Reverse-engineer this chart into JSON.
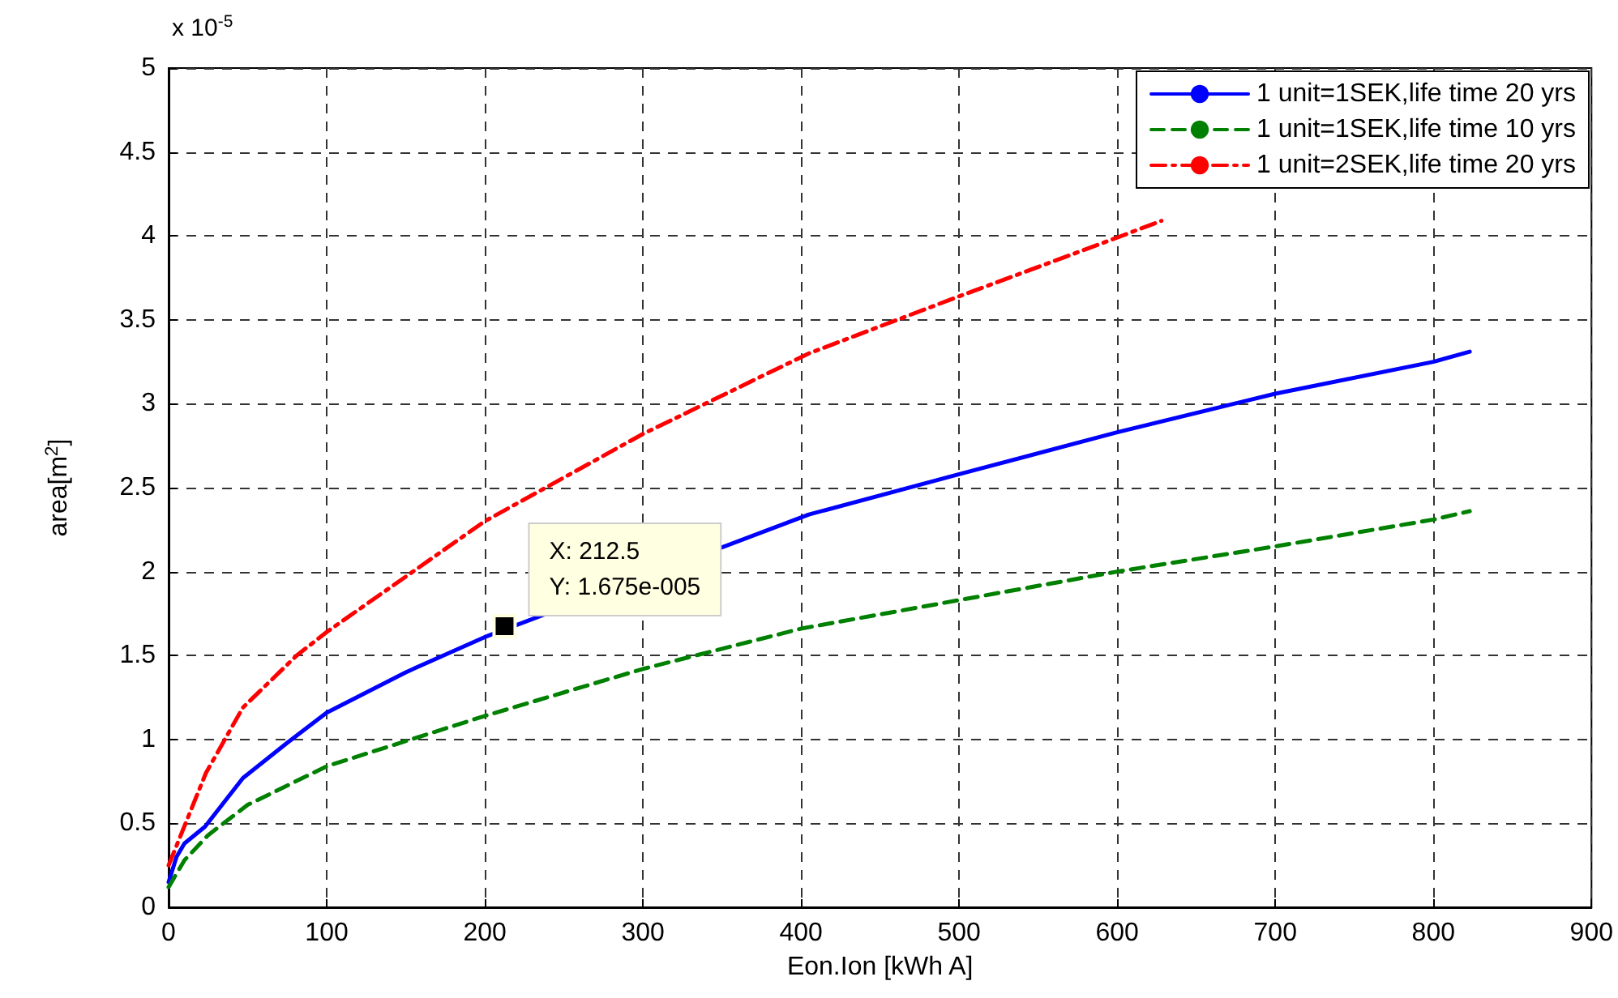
{
  "chart_data": {
    "type": "line",
    "xlabel": "Eon.Ion [kWh A]",
    "ylabel": "area[m$^{2}$]",
    "xlim": [
      0,
      900
    ],
    "xticks": [
      0,
      100,
      200,
      300,
      400,
      500,
      600,
      700,
      800,
      900
    ],
    "ylim": [
      0,
      5
    ],
    "yticks": [
      0,
      0.5,
      1,
      1.5,
      2,
      2.5,
      3,
      3.5,
      4,
      4.5,
      5
    ],
    "grid": true,
    "legend": "top right",
    "marker": "none",
    "annotations": [
      "x 10$^{-5}$",
      {
        "text": "X: 212.5\nY: 1.675e-005",
        "x": 212.5,
        "y": 1.675
      }
    ],
    "series": [
      {
        "name": "1 unit=1SEK,life time 20 yrs",
        "color": "#0000ff",
        "line_style": "solid",
        "x": [
          0,
          5,
          10,
          23,
          47,
          75,
          100,
          150,
          200,
          405,
          500,
          600,
          700,
          800,
          823
        ],
        "values": [
          0.15,
          0.3,
          0.38,
          0.48,
          0.77,
          0.98,
          1.16,
          1.4,
          1.61,
          2.34,
          2.58,
          2.83,
          3.06,
          3.25,
          3.31
        ]
      },
      {
        "name": "1 unit=1SEK,life time 10 yrs",
        "color": "#008000",
        "line_style": "dashed",
        "x": [
          0,
          10,
          25,
          50,
          100,
          200,
          300,
          400,
          500,
          600,
          700,
          800,
          823
        ],
        "values": [
          0.12,
          0.28,
          0.43,
          0.61,
          0.84,
          1.14,
          1.42,
          1.66,
          1.83,
          2.0,
          2.15,
          2.31,
          2.36
        ]
      },
      {
        "name": "1 unit=2SEK,life time 20 yrs",
        "color": "#ff0000",
        "line_style": "dashdot",
        "x": [
          0,
          3,
          23.6,
          47,
          81,
          100,
          200,
          300,
          405,
          500,
          600,
          628
        ],
        "values": [
          0.25,
          0.32,
          0.8,
          1.19,
          1.5,
          1.64,
          2.3,
          2.82,
          3.3,
          3.64,
          3.99,
          4.09
        ]
      }
    ]
  }
}
